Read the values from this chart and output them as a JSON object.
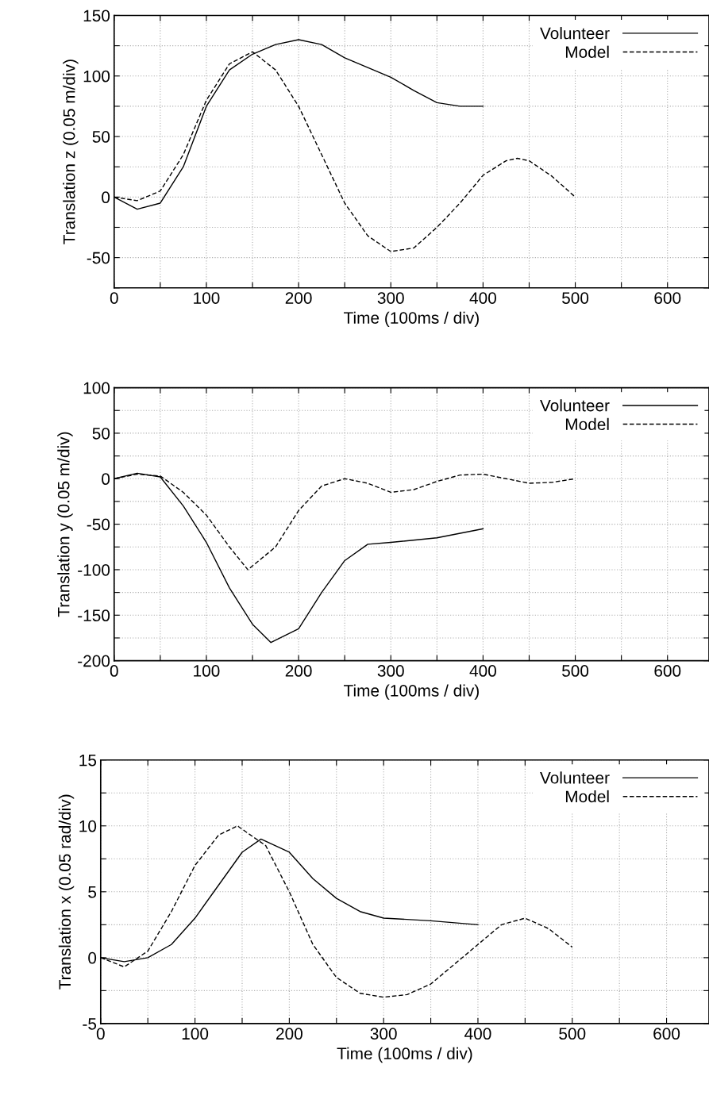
{
  "chart_data": [
    {
      "type": "line",
      "xlabel": "Time (100ms / div)",
      "ylabel": "Translation z (0.05 m/div)",
      "xlim": [
        0,
        645
      ],
      "ylim": [
        -75,
        150
      ],
      "xticks": [
        0,
        {
          "value": 50,
          "label": null
        },
        100,
        {
          "value": 150,
          "label": null
        },
        200,
        {
          "value": 250,
          "label": null
        },
        300,
        {
          "value": 350,
          "label": null
        },
        400,
        {
          "value": 450,
          "label": null
        },
        500,
        {
          "value": 550,
          "label": null
        },
        600
      ],
      "yticks": [
        {
          "value": -75,
          "label": null
        },
        -50,
        {
          "value": -25,
          "label": null
        },
        0,
        {
          "value": 25,
          "label": null
        },
        50,
        {
          "value": 75,
          "label": null
        },
        100,
        {
          "value": 125,
          "label": null
        },
        150
      ],
      "grid": true,
      "legend": "top right",
      "series": [
        {
          "name": "Volunteer",
          "color": "#000000",
          "line_style": "solid",
          "x": [
            0,
            25,
            50,
            75,
            100,
            125,
            150,
            175,
            200,
            225,
            250,
            275,
            300,
            325,
            350,
            375,
            400
          ],
          "values": [
            0,
            -10,
            -5,
            25,
            75,
            105,
            118,
            126,
            130,
            126,
            115,
            107,
            99,
            88,
            78,
            75,
            75
          ]
        },
        {
          "name": "Model",
          "color": "#000000",
          "line_style": "dashed",
          "x": [
            0,
            25,
            50,
            75,
            100,
            125,
            150,
            175,
            200,
            225,
            250,
            275,
            300,
            325,
            350,
            375,
            400,
            425,
            437,
            450,
            475,
            500
          ],
          "values": [
            0,
            -3,
            5,
            35,
            80,
            110,
            120,
            105,
            75,
            35,
            -5,
            -32,
            -45,
            -42,
            -25,
            -5,
            18,
            30,
            32,
            30,
            17,
            0
          ]
        }
      ]
    },
    {
      "type": "line",
      "xlabel": "Time (100ms / div)",
      "ylabel": "Translation y (0.05 m/div)",
      "xlim": [
        0,
        645
      ],
      "ylim": [
        -200,
        100
      ],
      "xticks": [
        0,
        {
          "value": 50,
          "label": null
        },
        100,
        {
          "value": 150,
          "label": null
        },
        200,
        {
          "value": 250,
          "label": null
        },
        300,
        {
          "value": 350,
          "label": null
        },
        400,
        {
          "value": 450,
          "label": null
        },
        500,
        {
          "value": 550,
          "label": null
        },
        600
      ],
      "yticks": [
        -200,
        {
          "value": -175,
          "label": null
        },
        -150,
        {
          "value": -125,
          "label": null
        },
        -100,
        {
          "value": -75,
          "label": null
        },
        -50,
        {
          "value": -25,
          "label": null
        },
        0,
        {
          "value": 25,
          "label": null
        },
        50,
        {
          "value": 75,
          "label": null
        },
        100
      ],
      "grid": true,
      "legend": "top right",
      "series": [
        {
          "name": "Volunteer",
          "color": "#000000",
          "line_style": "solid",
          "x": [
            0,
            25,
            50,
            75,
            100,
            125,
            150,
            170,
            200,
            225,
            250,
            275,
            300,
            350,
            400
          ],
          "values": [
            0,
            6,
            2,
            -30,
            -70,
            -120,
            -160,
            -180,
            -165,
            -125,
            -90,
            -72,
            -70,
            -65,
            -55
          ]
        },
        {
          "name": "Model",
          "color": "#000000",
          "line_style": "dashed",
          "x": [
            0,
            25,
            50,
            75,
            100,
            125,
            145,
            175,
            200,
            225,
            250,
            275,
            300,
            325,
            350,
            375,
            400,
            425,
            450,
            475,
            500
          ],
          "values": [
            0,
            5,
            3,
            -15,
            -40,
            -75,
            -100,
            -75,
            -35,
            -8,
            0,
            -5,
            -15,
            -12,
            -3,
            4,
            5,
            0,
            -5,
            -4,
            0
          ]
        }
      ]
    },
    {
      "type": "line",
      "xlabel": "Time (100ms / div)",
      "ylabel": "Translation x (0.05 rad/div)",
      "xlim": [
        0,
        645
      ],
      "ylim": [
        -5,
        15
      ],
      "xticks": [
        0,
        {
          "value": 50,
          "label": null
        },
        100,
        {
          "value": 150,
          "label": null
        },
        200,
        {
          "value": 250,
          "label": null
        },
        300,
        {
          "value": 350,
          "label": null
        },
        400,
        {
          "value": 450,
          "label": null
        },
        500,
        {
          "value": 550,
          "label": null
        },
        600
      ],
      "yticks": [
        -5,
        {
          "value": -2.5,
          "label": null
        },
        0,
        {
          "value": 2.5,
          "label": null
        },
        5,
        {
          "value": 7.5,
          "label": null
        },
        10,
        {
          "value": 12.5,
          "label": null
        },
        15
      ],
      "grid": true,
      "legend": "top right",
      "series": [
        {
          "name": "Volunteer",
          "color": "#000000",
          "line_style": "solid",
          "x": [
            0,
            25,
            50,
            75,
            100,
            125,
            150,
            170,
            200,
            225,
            250,
            275,
            300,
            350,
            400
          ],
          "values": [
            0,
            -0.3,
            0,
            1,
            3,
            5.5,
            8,
            9,
            8,
            6,
            4.5,
            3.5,
            3,
            2.8,
            2.5
          ]
        },
        {
          "name": "Model",
          "color": "#000000",
          "line_style": "dashed",
          "x": [
            0,
            25,
            50,
            75,
            100,
            125,
            145,
            175,
            200,
            225,
            250,
            275,
            300,
            325,
            350,
            375,
            400,
            425,
            450,
            475,
            500
          ],
          "values": [
            0,
            -0.7,
            0.5,
            3.5,
            7,
            9.3,
            10,
            8.5,
            5,
            1,
            -1.5,
            -2.7,
            -3,
            -2.8,
            -2,
            -0.5,
            1,
            2.5,
            3,
            2.2,
            0.8
          ]
        }
      ]
    }
  ]
}
